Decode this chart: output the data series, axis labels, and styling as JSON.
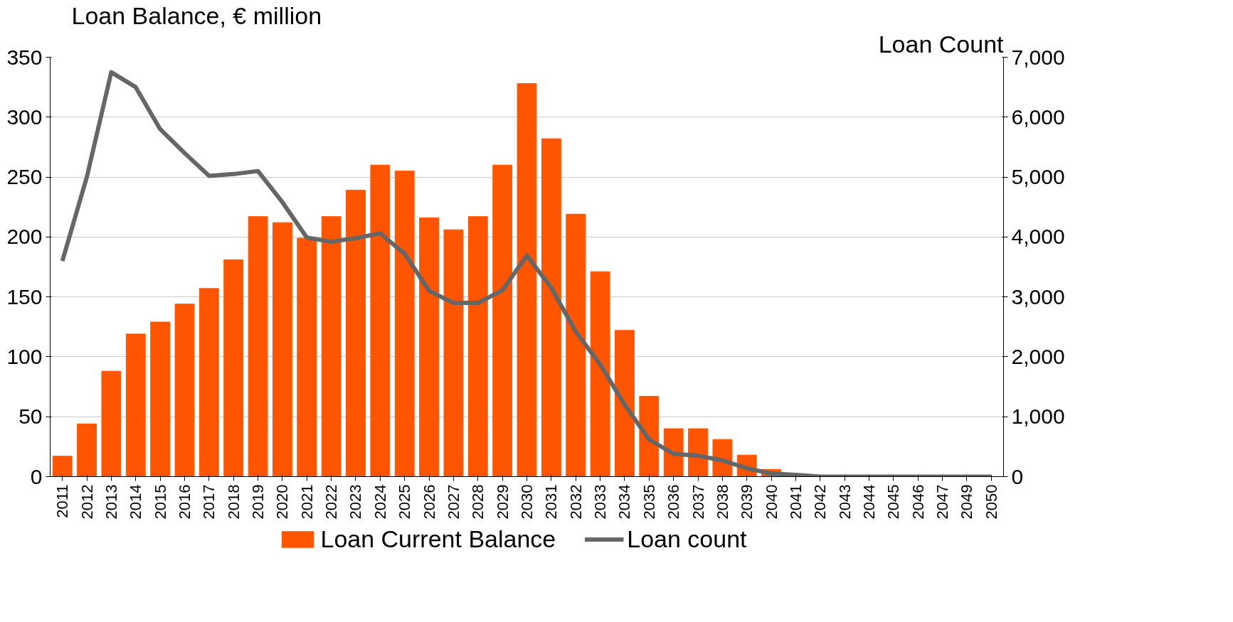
{
  "chart_data": {
    "type": "bar",
    "ylabel": "Loan Balance, € million",
    "y2label": "Loan Count",
    "categories": [
      "2011",
      "2012",
      "2013",
      "2014",
      "2015",
      "2016",
      "2017",
      "2018",
      "2019",
      "2020",
      "2021",
      "2022",
      "2023",
      "2024",
      "2025",
      "2026",
      "2027",
      "2028",
      "2029",
      "2030",
      "2031",
      "2032",
      "2033",
      "2034",
      "2035",
      "2036",
      "2037",
      "2038",
      "2039",
      "2040",
      "2041",
      "2042",
      "2043",
      "2044",
      "2045",
      "2046",
      "2047",
      "2049",
      "2050"
    ],
    "series": [
      {
        "name": "Loan Current Balance",
        "color": "#ff5500",
        "values": [
          17,
          44,
          88,
          119,
          129,
          144,
          157,
          181,
          217,
          212,
          199,
          217,
          239,
          260,
          255,
          216,
          206,
          217,
          260,
          328,
          282,
          219,
          171,
          122,
          67,
          40,
          40,
          31,
          18,
          6,
          0,
          0,
          0,
          0,
          0,
          0,
          0,
          0,
          0
        ]
      },
      {
        "name": "Loan count",
        "type": "line",
        "axis": "y2",
        "color": "#666666",
        "values": [
          3600,
          5000,
          6750,
          6500,
          5800,
          5400,
          5020,
          5050,
          5100,
          4580,
          3990,
          3920,
          3980,
          4060,
          3720,
          3100,
          2900,
          2900,
          3110,
          3690,
          3150,
          2420,
          1870,
          1200,
          620,
          380,
          350,
          270,
          140,
          50,
          30,
          0,
          0,
          0,
          0,
          0,
          0,
          0,
          0
        ]
      }
    ],
    "ylim": [
      0,
      350
    ],
    "yticks": [
      0,
      50,
      100,
      150,
      200,
      250,
      300,
      350
    ],
    "y2lim": [
      0,
      7000
    ],
    "y2ticks": [
      {
        "value": 0,
        "label": "0"
      },
      {
        "value": 1000,
        "label": "1,000"
      },
      {
        "value": 2000,
        "label": "2,000"
      },
      {
        "value": 3000,
        "label": "3,000"
      },
      {
        "value": 4000,
        "label": "4,000"
      },
      {
        "value": 5000,
        "label": "5,000"
      },
      {
        "value": 6000,
        "label": "6,000"
      },
      {
        "value": 7000,
        "label": "7,000"
      }
    ],
    "grid": "y",
    "legend": "bottom"
  }
}
